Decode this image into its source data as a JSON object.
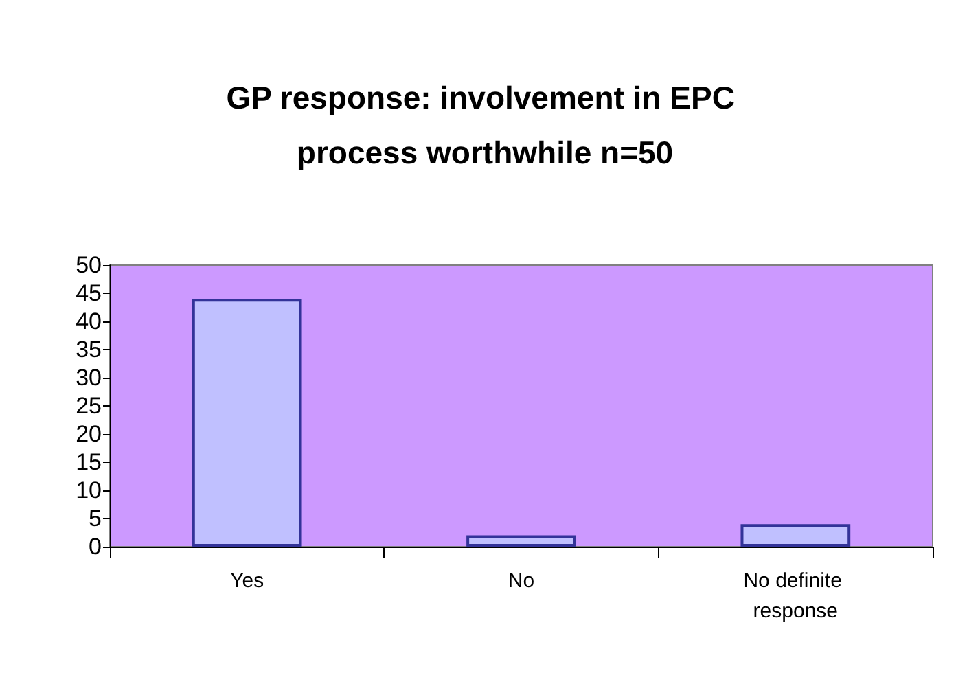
{
  "chart_data": {
    "type": "bar",
    "title": "GP response: involvement in EPC process worthwhile n=50",
    "categories": [
      "Yes",
      "No",
      "No definite response"
    ],
    "values": [
      44,
      2,
      4
    ],
    "color": "#c0c0ff",
    "ylim": [
      0,
      50
    ],
    "yticks": [
      0,
      5,
      10,
      15,
      20,
      25,
      30,
      35,
      40,
      45,
      50
    ],
    "grid": false
  }
}
